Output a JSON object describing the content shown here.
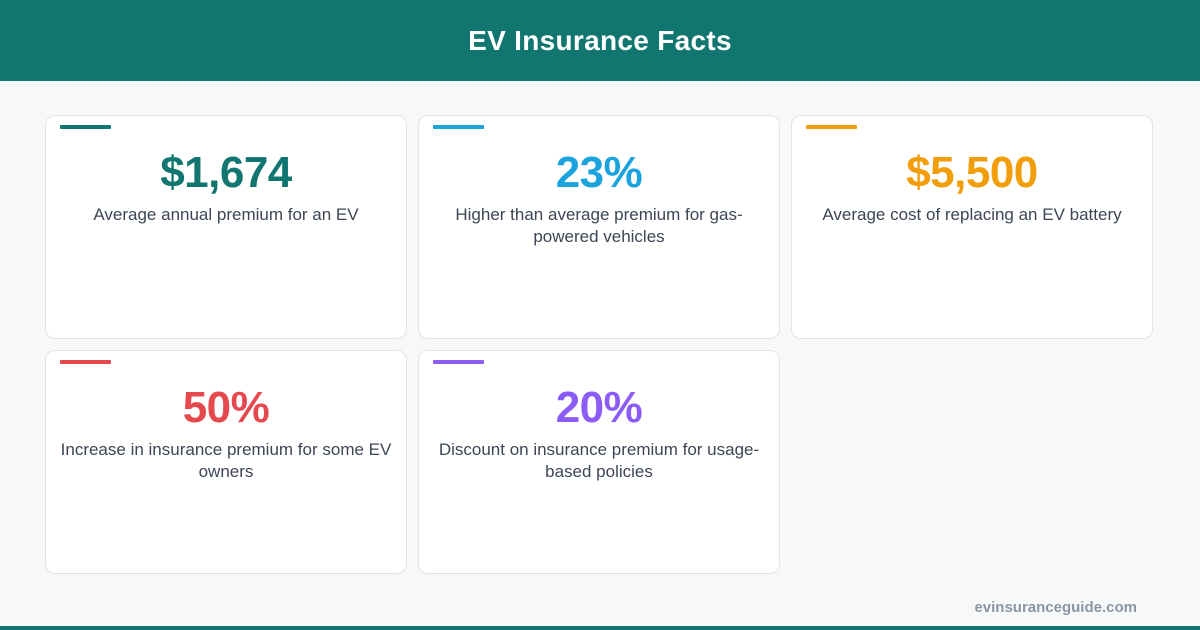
{
  "header": {
    "title": "EV Insurance Facts"
  },
  "colors": {
    "header_bg": "#10766f",
    "teal": "#10766f",
    "blue": "#1ba3de",
    "orange": "#f29e0c",
    "red": "#e5484d",
    "purple": "#8b5cf6"
  },
  "stats": [
    {
      "value": "$1,674",
      "description": "Average annual premium for an EV",
      "color": "#10766f"
    },
    {
      "value": "23%",
      "description": "Higher than average premium for gas-powered vehicles",
      "color": "#1ba3de"
    },
    {
      "value": "$5,500",
      "description": "Average cost of replacing an EV battery",
      "color": "#f29e0c"
    },
    {
      "value": "50%",
      "description": "Increase in insurance premium for some EV owners",
      "color": "#e5484d"
    },
    {
      "value": "20%",
      "description": "Discount on insurance premium for usage-based policies",
      "color": "#8b5cf6"
    }
  ],
  "footer": {
    "site": "evinsuranceguide.com"
  }
}
